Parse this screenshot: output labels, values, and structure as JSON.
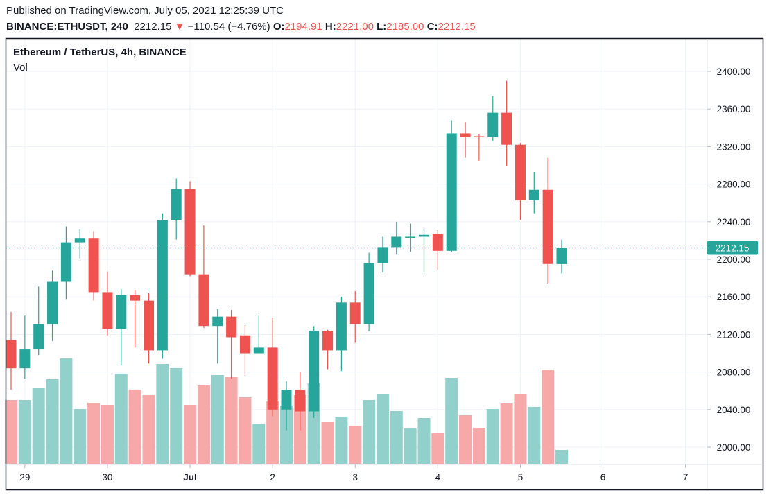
{
  "header": {
    "published": "Published on TradingView.com, July 05, 2021 12:25:39 UTC",
    "symbol": "BINANCE:ETHUSDT, 240",
    "last": "2212.15",
    "change": "−110.54 (−4.76%)",
    "o_label": "O:",
    "o": "2194.91",
    "h_label": "H:",
    "h": "2221.00",
    "l_label": "L:",
    "l": "2185.00",
    "c_label": "C:",
    "c": "2212.15"
  },
  "legend": {
    "title": "Ethereum / TetherUS, 4h, BINANCE",
    "indicator": "Vol"
  },
  "colors": {
    "up": "#26a69a",
    "down": "#ef5350",
    "up_vol": "#92d1cb",
    "down_vol": "#f6a9a8"
  },
  "chart_data": {
    "type": "candlestick",
    "ylim": [
      1985,
      2410
    ],
    "grid": true,
    "y_ticks": [
      "2400.00",
      "2360.00",
      "2320.00",
      "2280.00",
      "2240.00",
      "2200.00",
      "2160.00",
      "2120.00",
      "2080.00",
      "2040.00",
      "2000.00"
    ],
    "x_ticks": [
      {
        "label": "29",
        "bar": 1
      },
      {
        "label": "30",
        "bar": 7
      },
      {
        "label": "Jul",
        "bar": 13
      },
      {
        "label": "2",
        "bar": 19
      },
      {
        "label": "3",
        "bar": 25
      },
      {
        "label": "4",
        "bar": 31
      },
      {
        "label": "5",
        "bar": 37
      },
      {
        "label": "6",
        "bar": 43
      },
      {
        "label": "7",
        "bar": 49
      }
    ],
    "last_price_label": "2212.15",
    "candles": [
      [
        2114,
        2084,
        2144,
        2061,
        92
      ],
      [
        2084,
        2104,
        2140,
        2073,
        92
      ],
      [
        2104,
        2131,
        2171,
        2098,
        109
      ],
      [
        2131,
        2176,
        2188,
        2113,
        122
      ],
      [
        2176,
        2218,
        2235,
        2157,
        152
      ],
      [
        2218,
        2222,
        2232,
        2201,
        79
      ],
      [
        2222,
        2165,
        2230,
        2156,
        88
      ],
      [
        2165,
        2126,
        2187,
        2119,
        85
      ],
      [
        2126,
        2162,
        2168,
        2087,
        130
      ],
      [
        2162,
        2156,
        2167,
        2106,
        107
      ],
      [
        2156,
        2103,
        2164,
        2089,
        99
      ],
      [
        2103,
        2242,
        2249,
        2094,
        144
      ],
      [
        2242,
        2275,
        2286,
        2221,
        138
      ],
      [
        2275,
        2184,
        2283,
        2182,
        85
      ],
      [
        2184,
        2129,
        2236,
        2127,
        113
      ],
      [
        2129,
        2139,
        2147,
        2089,
        128
      ],
      [
        2139,
        2117,
        2146,
        2073,
        125
      ],
      [
        2119,
        2100,
        2130,
        2075,
        96
      ],
      [
        2100,
        2106,
        2140,
        2100,
        58
      ],
      [
        2106,
        2040,
        2138,
        2033,
        90
      ],
      [
        2040,
        2061,
        2070,
        2018,
        84
      ],
      [
        2061,
        2038,
        2080,
        2018,
        99
      ],
      [
        2038,
        2124,
        2129,
        2031,
        116
      ],
      [
        2124,
        2103,
        2125,
        2083,
        61
      ],
      [
        2103,
        2154,
        2160,
        2081,
        68
      ],
      [
        2154,
        2131,
        2166,
        2111,
        55
      ],
      [
        2131,
        2196,
        2207,
        2124,
        92
      ],
      [
        2196,
        2213,
        2224,
        2186,
        101
      ],
      [
        2213,
        2224,
        2240,
        2205,
        76
      ],
      [
        2223,
        2224,
        2238,
        2208,
        51
      ],
      [
        2224,
        2226,
        2233,
        2186,
        66
      ],
      [
        2227,
        2209,
        2231,
        2189,
        44
      ],
      [
        2209,
        2334,
        2348,
        2208,
        124
      ],
      [
        2334,
        2330,
        2346,
        2308,
        70
      ],
      [
        2331,
        2330,
        2333,
        2305,
        52
      ],
      [
        2330,
        2356,
        2374,
        2326,
        79
      ],
      [
        2356,
        2322,
        2390,
        2299,
        87
      ],
      [
        2322,
        2263,
        2324,
        2242,
        101
      ],
      [
        2263,
        2274,
        2293,
        2249,
        82
      ],
      [
        2274,
        2195,
        2308,
        2174,
        136
      ],
      [
        2194.91,
        2212.15,
        2221,
        2185,
        20
      ]
    ],
    "candle_fields": [
      "open",
      "close",
      "high",
      "low",
      "volume_relative"
    ]
  }
}
